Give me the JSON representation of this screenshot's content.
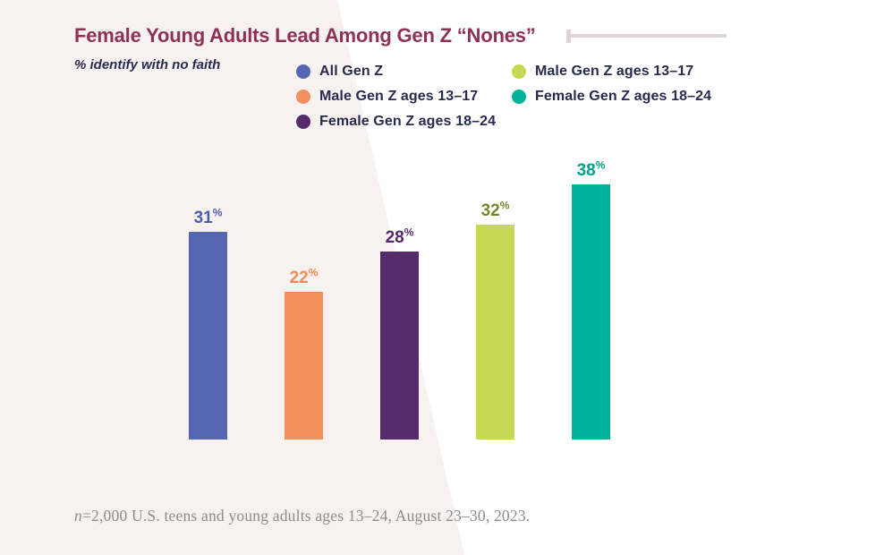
{
  "page": {
    "background_color": "#ffffff",
    "wedge_color": "#f7f1ef"
  },
  "header": {
    "title": "Female Young Adults Lead Among Gen Z “Nones”",
    "title_color": "#8d3158",
    "subtitle": "% identify with no faith",
    "subtitle_color": "#282b4f",
    "rule_color": "#ddd5d3"
  },
  "footnote": {
    "text": "n=2,000 U.S. teens and young adults ages 13–24, August 23–30, 2023.",
    "color": "#8e8c8c"
  },
  "chart_data": {
    "type": "bar",
    "title": "Female Young Adults Lead Among Gen Z “Nones”",
    "note": "% identify with no faith",
    "unit": "%",
    "ylim": [
      0,
      40
    ],
    "grid": false,
    "axes_shown": false,
    "legend_position": "top",
    "legend_text_color": "#282b4f",
    "categories": [
      "All Gen Z",
      "Male Gen Z ages 13–17",
      "Female Gen Z ages 18–24",
      "Male Gen Z ages 13–17",
      "Female Gen Z ages 18–24"
    ],
    "values": [
      31,
      22,
      28,
      32,
      38
    ],
    "bar_colors": [
      "#5566b0",
      "#f2915c",
      "#572a6b",
      "#c7d952",
      "#00b29b"
    ],
    "value_label_colors": [
      "#4c5da8",
      "#ef8c55",
      "#572a6b",
      "#76862c",
      "#00a189"
    ]
  }
}
